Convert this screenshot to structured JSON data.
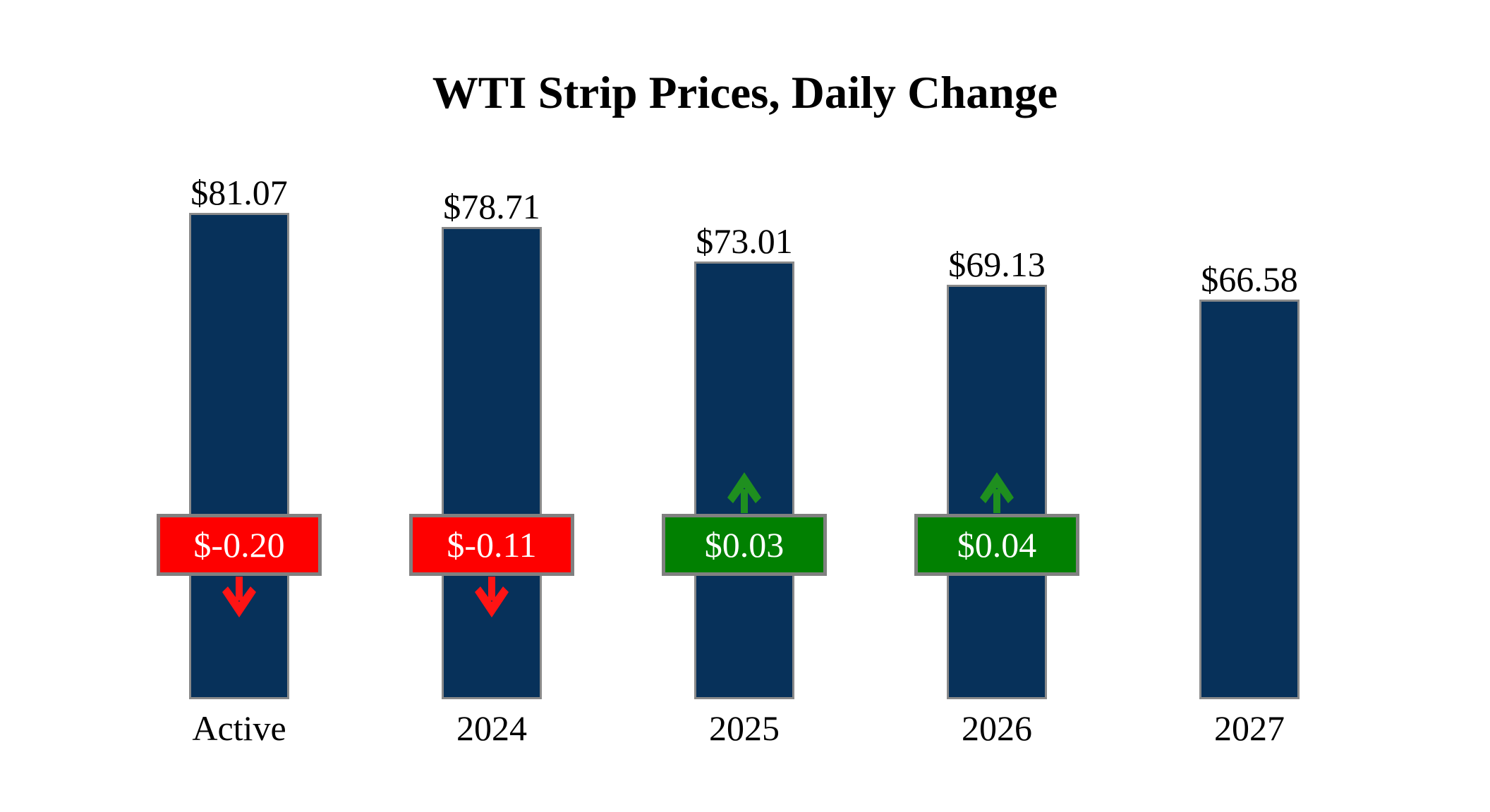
{
  "chart_data": {
    "type": "bar",
    "title": "WTI Strip Prices, Daily Change",
    "categories": [
      "Active",
      "2024",
      "2025",
      "2026",
      "2027"
    ],
    "values": [
      81.07,
      78.71,
      73.01,
      69.13,
      66.58
    ],
    "value_labels": [
      "$81.07",
      "$78.71",
      "$73.01",
      "$69.13",
      "$66.58"
    ],
    "daily_changes": [
      {
        "label": "$-0.20",
        "value": -0.2,
        "direction": "down"
      },
      {
        "label": "$-0.11",
        "value": -0.11,
        "direction": "down"
      },
      {
        "label": "$0.03",
        "value": 0.03,
        "direction": "up"
      },
      {
        "label": "$0.04",
        "value": 0.04,
        "direction": "up"
      },
      null
    ],
    "ylim": [
      0,
      82
    ],
    "grid": false,
    "axes_visible": false,
    "legend_position": "none",
    "colors": {
      "bar_fill": "#07315A",
      "bar_border": "#8A8A8A",
      "negative_badge": "#FE0000",
      "negative_arrow": "#FF1414",
      "positive_badge": "#018001",
      "positive_arrow": "#1F8F1F",
      "badge_border": "#808080",
      "badge_text": "#FFFFFF",
      "label_text": "#000000",
      "background": "#FFFFFF"
    }
  }
}
